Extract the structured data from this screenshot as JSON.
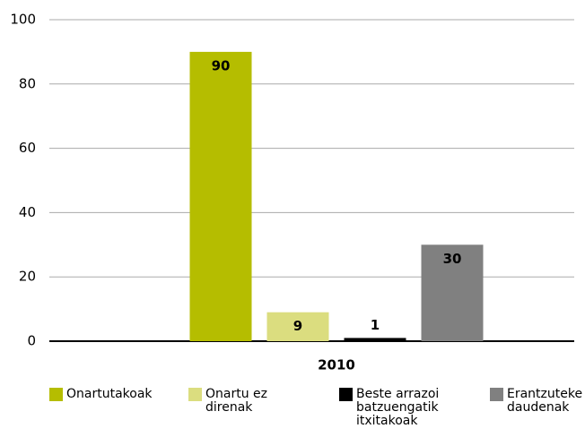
{
  "chart_data": {
    "type": "bar",
    "categories": [
      "2010"
    ],
    "series": [
      {
        "name": "Onartutakoak",
        "color": "#b5bd00",
        "values": [
          90
        ]
      },
      {
        "name": "Onartu ez direnak",
        "color": "#dbdd7f",
        "values": [
          9
        ]
      },
      {
        "name": "Beste arrazoi batzuengatik itxitakoak",
        "color": "#000000",
        "values": [
          1
        ]
      },
      {
        "name": "Erantzuteke daudenak",
        "color": "#808080",
        "values": [
          30
        ]
      }
    ],
    "ylim": [
      0,
      100
    ],
    "yticks": [
      0,
      20,
      40,
      60,
      80,
      100
    ],
    "grid": true,
    "legend": "bottom"
  }
}
